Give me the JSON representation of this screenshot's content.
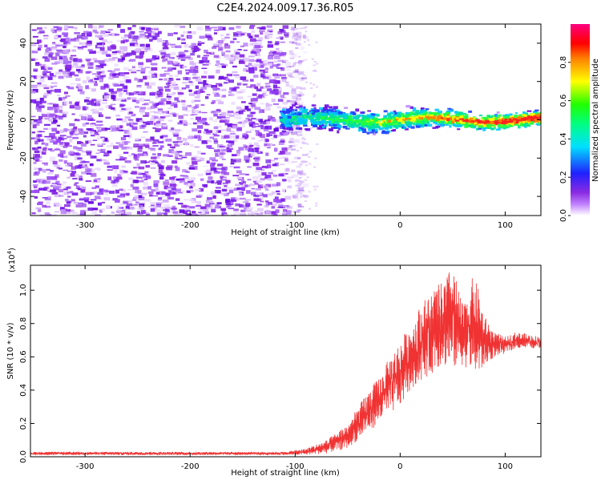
{
  "title": "C2E4.2024.009.17.36.R05",
  "colors": {
    "snr_line": "#f03232",
    "waterfall_noise": "#7a1cf0",
    "axis": "#000000"
  },
  "chart_data": [
    {
      "type": "heatmap",
      "name": "spectrogram",
      "xlabel": "Height of straight line (km)",
      "ylabel": "Frequency (Hz)",
      "xlim": [
        -352,
        134
      ],
      "ylim": [
        -50,
        50
      ],
      "x_ticks": [
        -300,
        -200,
        -100,
        0,
        100
      ],
      "x_tick_labels": [
        "-300",
        "-200",
        "-100",
        "0",
        "100"
      ],
      "y_ticks": [
        -40,
        -20,
        0,
        20,
        40
      ],
      "y_tick_labels": [
        "-40",
        "-20",
        "0",
        "20",
        "40"
      ],
      "noise_region_x": [
        -352,
        -100
      ],
      "signal_region_x": [
        -115,
        134
      ],
      "signal_center_freq": 0,
      "colorbar": {
        "label": "Normalized spectral amplitude",
        "range": [
          0,
          1
        ],
        "ticks": [
          0,
          0.2,
          0.4,
          0.6,
          0.8
        ],
        "tick_labels": [
          "0.0",
          "0.2",
          "0.4",
          "0.6",
          "0.8"
        ],
        "colormap": "rainbow (purple-blue-cyan-green-yellow-red-magenta)"
      }
    },
    {
      "type": "line",
      "name": "snr",
      "xlabel": "Height of straight line (km)",
      "ylabel": "SNR (10 * v/v)",
      "y_multiplier": "(x10",
      "y_multiplier_exp": "4",
      "y_multiplier_close": ")",
      "xlim": [
        -352,
        134
      ],
      "ylim": [
        0,
        1.15
      ],
      "x_ticks": [
        -300,
        -200,
        -100,
        0,
        100
      ],
      "x_tick_labels": [
        "-300",
        "-200",
        "-100",
        "0",
        "100"
      ],
      "y_ticks": [
        0.0,
        0.2,
        0.4,
        0.6,
        0.8,
        1.0
      ],
      "y_tick_labels": [
        "0.0",
        "0.2",
        "0.4",
        "0.6",
        "0.8",
        "1.0"
      ],
      "envelope": {
        "x": [
          -352,
          -250,
          -150,
          -110,
          -90,
          -70,
          -50,
          -40,
          -30,
          -20,
          -10,
          0,
          10,
          20,
          30,
          40,
          50,
          60,
          70,
          75,
          80,
          90,
          100,
          110,
          120,
          134
        ],
        "min": [
          0.01,
          0.01,
          0.01,
          0.01,
          0.01,
          0.02,
          0.05,
          0.1,
          0.15,
          0.2,
          0.25,
          0.3,
          0.4,
          0.45,
          0.5,
          0.55,
          0.52,
          0.55,
          0.5,
          0.45,
          0.55,
          0.6,
          0.62,
          0.65,
          0.65,
          0.65
        ],
        "max": [
          0.03,
          0.03,
          0.03,
          0.03,
          0.05,
          0.1,
          0.2,
          0.3,
          0.4,
          0.48,
          0.6,
          0.7,
          0.8,
          0.92,
          1.0,
          1.05,
          1.15,
          0.9,
          1.1,
          1.0,
          0.85,
          0.75,
          0.72,
          0.75,
          0.74,
          0.72
        ]
      }
    }
  ]
}
